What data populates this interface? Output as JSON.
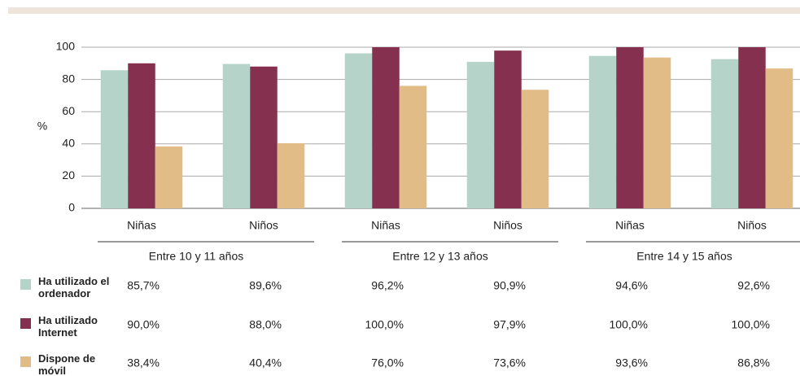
{
  "chart_data": {
    "type": "bar",
    "y_label": "%",
    "categories": [
      "Niñas",
      "Niños",
      "Niñas",
      "Niños",
      "Niñas",
      "Niños"
    ],
    "groups": [
      {
        "name": "Entre 10 y 11 años",
        "categories": [
          0,
          1
        ]
      },
      {
        "name": "Entre 12 y 13 años",
        "categories": [
          2,
          3
        ]
      },
      {
        "name": "Entre 14 y 15 años",
        "categories": [
          4,
          5
        ]
      }
    ],
    "series": [
      {
        "name": "Ha utilizado el ordenador",
        "color": "#b5d3c8",
        "values": [
          85.7,
          89.6,
          96.2,
          90.9,
          94.6,
          92.6
        ],
        "value_labels": [
          "85,7%",
          "89,6%",
          "96,2%",
          "90,9%",
          "94,6%",
          "92,6%"
        ]
      },
      {
        "name": "Ha utilizado Internet",
        "color": "#86304f",
        "values": [
          90.0,
          88.0,
          100.0,
          97.9,
          100.0,
          100.0
        ],
        "value_labels": [
          "90,0%",
          "88,0%",
          "100,0%",
          "97,9%",
          "100,0%",
          "100,0%"
        ]
      },
      {
        "name": "Dispone de móvil",
        "color": "#e2bc86",
        "values": [
          38.4,
          40.4,
          76.0,
          73.6,
          93.6,
          86.8
        ],
        "value_labels": [
          "38,4%",
          "40,4%",
          "76,0%",
          "73,6%",
          "93,6%",
          "86,8%"
        ]
      }
    ],
    "ylim": [
      0,
      100
    ],
    "yticks": [
      0,
      20,
      40,
      60,
      80,
      100
    ],
    "grid": true
  }
}
